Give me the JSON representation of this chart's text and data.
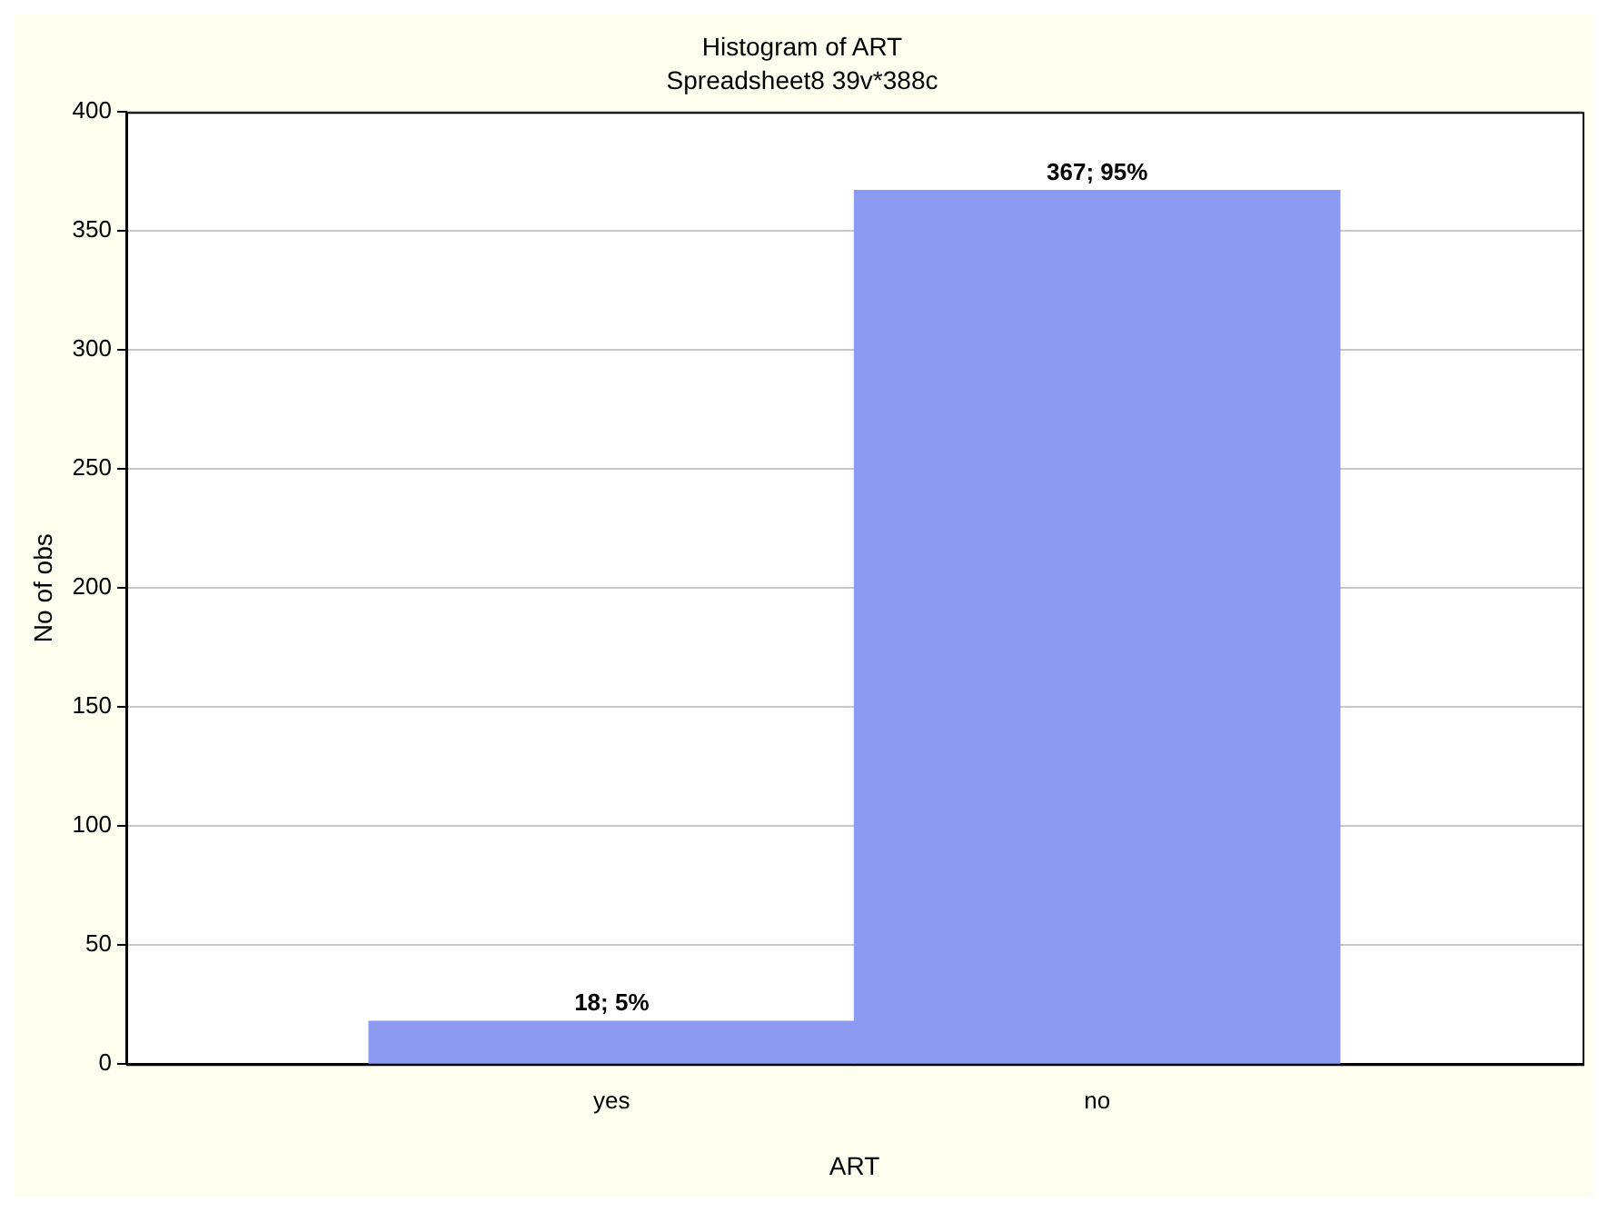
{
  "chart_data": {
    "type": "bar",
    "title": "Histogram of ART",
    "subtitle": "Spreadsheet8 39v*388c",
    "xlabel": "ART",
    "ylabel": "No of obs",
    "categories": [
      "yes",
      "no"
    ],
    "values": [
      18,
      367
    ],
    "value_labels": [
      "18; 5%",
      "367; 95%"
    ],
    "color": "#8c9af2",
    "ylim": [
      0,
      400
    ],
    "yticks": [
      0,
      50,
      100,
      150,
      200,
      250,
      300,
      350,
      400
    ],
    "grid": "y",
    "legend": false
  }
}
